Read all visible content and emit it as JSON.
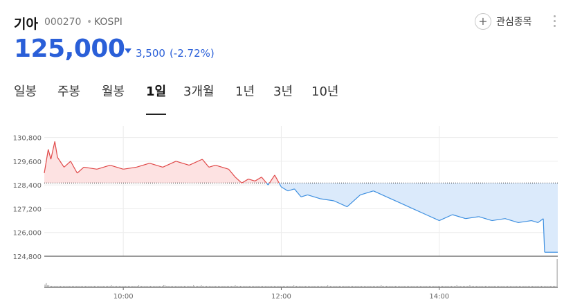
{
  "stock": {
    "name": "기아",
    "code": "000270",
    "separator": "•",
    "market": "KOSPI"
  },
  "price": {
    "current": "125,000",
    "change": "3,500",
    "change_pct": "(-2.72%)",
    "direction": "down",
    "color": "#2a5fd8"
  },
  "actions": {
    "watch_label": "관심종목",
    "watch_icon": "plus-circle-icon",
    "more_icon": "more-vertical-icon"
  },
  "tabs": [
    {
      "label": "일봉",
      "active": false
    },
    {
      "label": "주봉",
      "active": false
    },
    {
      "label": "월봉",
      "active": false
    },
    {
      "label": "1일",
      "active": true
    },
    {
      "label": "3개월",
      "active": false
    },
    {
      "label": "1년",
      "active": false
    },
    {
      "label": "3년",
      "active": false
    },
    {
      "label": "10년",
      "active": false
    }
  ],
  "chart_data": {
    "type": "area",
    "previous_close": 128500,
    "ylim": [
      124800,
      131100
    ],
    "yticks": [
      "130,800",
      "129,600",
      "128,400",
      "127,200",
      "126,000",
      "124,800"
    ],
    "ytick_values": [
      130800,
      129600,
      128400,
      127200,
      126000,
      124800
    ],
    "xticks": [
      "10:00",
      "12:00",
      "14:00"
    ],
    "xtick_times": [
      "10:00",
      "12:00",
      "14:00"
    ],
    "xlim": [
      "09:00",
      "15:30"
    ],
    "colors": {
      "up": "#e04848",
      "down": "#3d8fe0",
      "up_fill": "#fde2e2",
      "down_fill": "#dbeafb",
      "volume": "#9a9a9a"
    },
    "series": [
      {
        "x": [
          "09:00",
          "09:03",
          "09:05",
          "09:08",
          "09:10",
          "09:15",
          "09:20",
          "09:25",
          "09:30",
          "09:40",
          "09:50",
          "10:00",
          "10:10",
          "10:20",
          "10:30",
          "10:40",
          "10:50",
          "11:00",
          "11:05",
          "11:10",
          "11:15",
          "11:20",
          "11:25",
          "11:30",
          "11:35",
          "11:40",
          "11:45",
          "11:50",
          "11:55",
          "12:00",
          "12:05",
          "12:10",
          "12:15",
          "12:20",
          "12:30",
          "12:40",
          "12:50",
          "13:00",
          "13:10",
          "13:20",
          "13:30",
          "13:40",
          "13:50",
          "14:00",
          "14:10",
          "14:20",
          "14:30",
          "14:40",
          "14:50",
          "15:00",
          "15:10",
          "15:15",
          "15:19",
          "15:20",
          "15:30"
        ],
        "y": [
          129000,
          130200,
          129700,
          130600,
          129800,
          129300,
          129600,
          129000,
          129300,
          129200,
          129400,
          129200,
          129300,
          129500,
          129300,
          129600,
          129400,
          129700,
          129300,
          129400,
          129300,
          129200,
          128800,
          128500,
          128700,
          128600,
          128800,
          128400,
          128900,
          128300,
          128100,
          128200,
          127800,
          127900,
          127700,
          127600,
          127300,
          127900,
          128100,
          127800,
          127500,
          127200,
          126900,
          126600,
          126900,
          126700,
          126800,
          126600,
          126700,
          126500,
          126600,
          126500,
          126700,
          125000,
          125000
        ]
      }
    ],
    "volume": [
      4,
      6,
      3,
      3,
      2,
      2,
      2,
      2,
      2,
      2,
      2,
      2,
      2,
      2,
      2,
      2,
      2,
      2,
      2,
      2,
      2,
      2,
      2,
      2,
      2,
      2,
      2,
      2,
      2,
      2,
      2,
      2,
      2,
      2,
      2,
      2,
      2,
      2,
      2,
      2,
      2,
      2,
      2,
      2,
      2,
      2,
      2,
      2,
      2,
      2,
      2,
      3,
      2,
      2,
      2,
      2,
      2,
      2,
      2,
      2,
      2,
      2,
      2,
      2,
      2,
      2,
      2,
      2,
      2,
      2,
      2,
      2,
      3,
      2,
      2,
      2,
      2,
      2,
      2,
      2,
      2,
      2,
      2,
      2,
      2,
      2,
      2,
      2,
      2,
      2,
      2,
      3,
      3,
      2,
      2,
      2,
      2,
      2,
      2,
      2,
      2,
      2,
      2,
      2,
      2,
      2,
      2,
      2,
      2,
      2,
      2,
      2,
      2,
      2,
      3,
      2,
      2,
      2,
      2,
      2,
      3,
      2,
      2,
      2,
      2,
      2,
      2,
      2,
      2,
      2,
      2,
      2,
      2,
      2,
      2,
      2,
      2,
      2,
      2,
      2,
      2,
      2,
      2,
      2,
      2,
      2,
      3,
      2,
      2,
      2,
      2,
      2,
      2,
      2,
      2,
      2,
      2,
      2,
      2,
      2,
      2,
      2,
      2,
      2,
      2,
      2,
      2,
      2,
      2,
      2,
      2,
      2,
      2,
      2,
      2,
      2,
      2,
      2,
      2,
      2,
      2,
      2,
      2,
      2,
      2,
      2,
      2,
      2,
      2,
      2,
      2,
      3,
      2,
      2,
      2,
      2,
      2,
      2,
      2,
      2,
      2,
      2,
      2,
      2,
      2,
      2,
      2,
      2,
      2,
      2,
      2,
      2,
      2,
      2,
      2,
      2,
      2,
      3,
      2,
      2,
      2,
      2,
      2,
      2,
      2,
      2,
      2,
      2,
      2,
      2,
      2,
      2,
      2,
      2,
      2,
      2,
      2,
      2,
      2,
      2,
      2,
      2,
      2,
      2,
      2,
      2,
      2,
      2,
      2,
      2,
      2,
      2,
      2,
      2,
      2,
      2,
      2,
      2,
      3,
      2,
      2,
      2,
      2,
      2,
      2,
      2,
      2,
      2,
      2,
      2,
      2,
      2,
      2,
      2,
      2,
      2,
      2,
      2,
      2,
      2,
      2,
      2,
      2,
      2,
      2,
      2,
      2,
      2,
      2,
      2,
      2,
      2,
      2,
      2,
      2,
      2,
      2,
      2,
      2,
      2,
      2,
      2,
      2,
      2,
      2,
      2,
      2,
      2,
      2,
      2,
      2,
      2,
      2,
      2,
      2,
      2,
      3,
      2,
      2,
      2,
      2,
      2,
      2,
      2,
      2,
      2,
      3,
      2,
      2,
      2,
      2,
      2,
      2,
      2,
      2,
      2,
      2,
      2,
      2,
      2,
      2,
      2,
      2,
      2,
      2,
      2,
      2,
      2,
      2,
      2,
      2,
      2,
      2,
      2,
      2,
      2,
      2,
      2,
      2,
      2,
      2,
      2,
      2,
      2,
      2,
      2,
      2,
      2,
      2,
      2,
      2,
      2,
      2,
      2,
      2,
      2,
      2,
      2,
      2,
      2,
      2,
      2,
      2,
      2,
      2,
      2,
      2,
      2,
      2,
      2,
      2,
      2,
      2,
      40
    ],
    "grid": true,
    "legend": "none"
  }
}
